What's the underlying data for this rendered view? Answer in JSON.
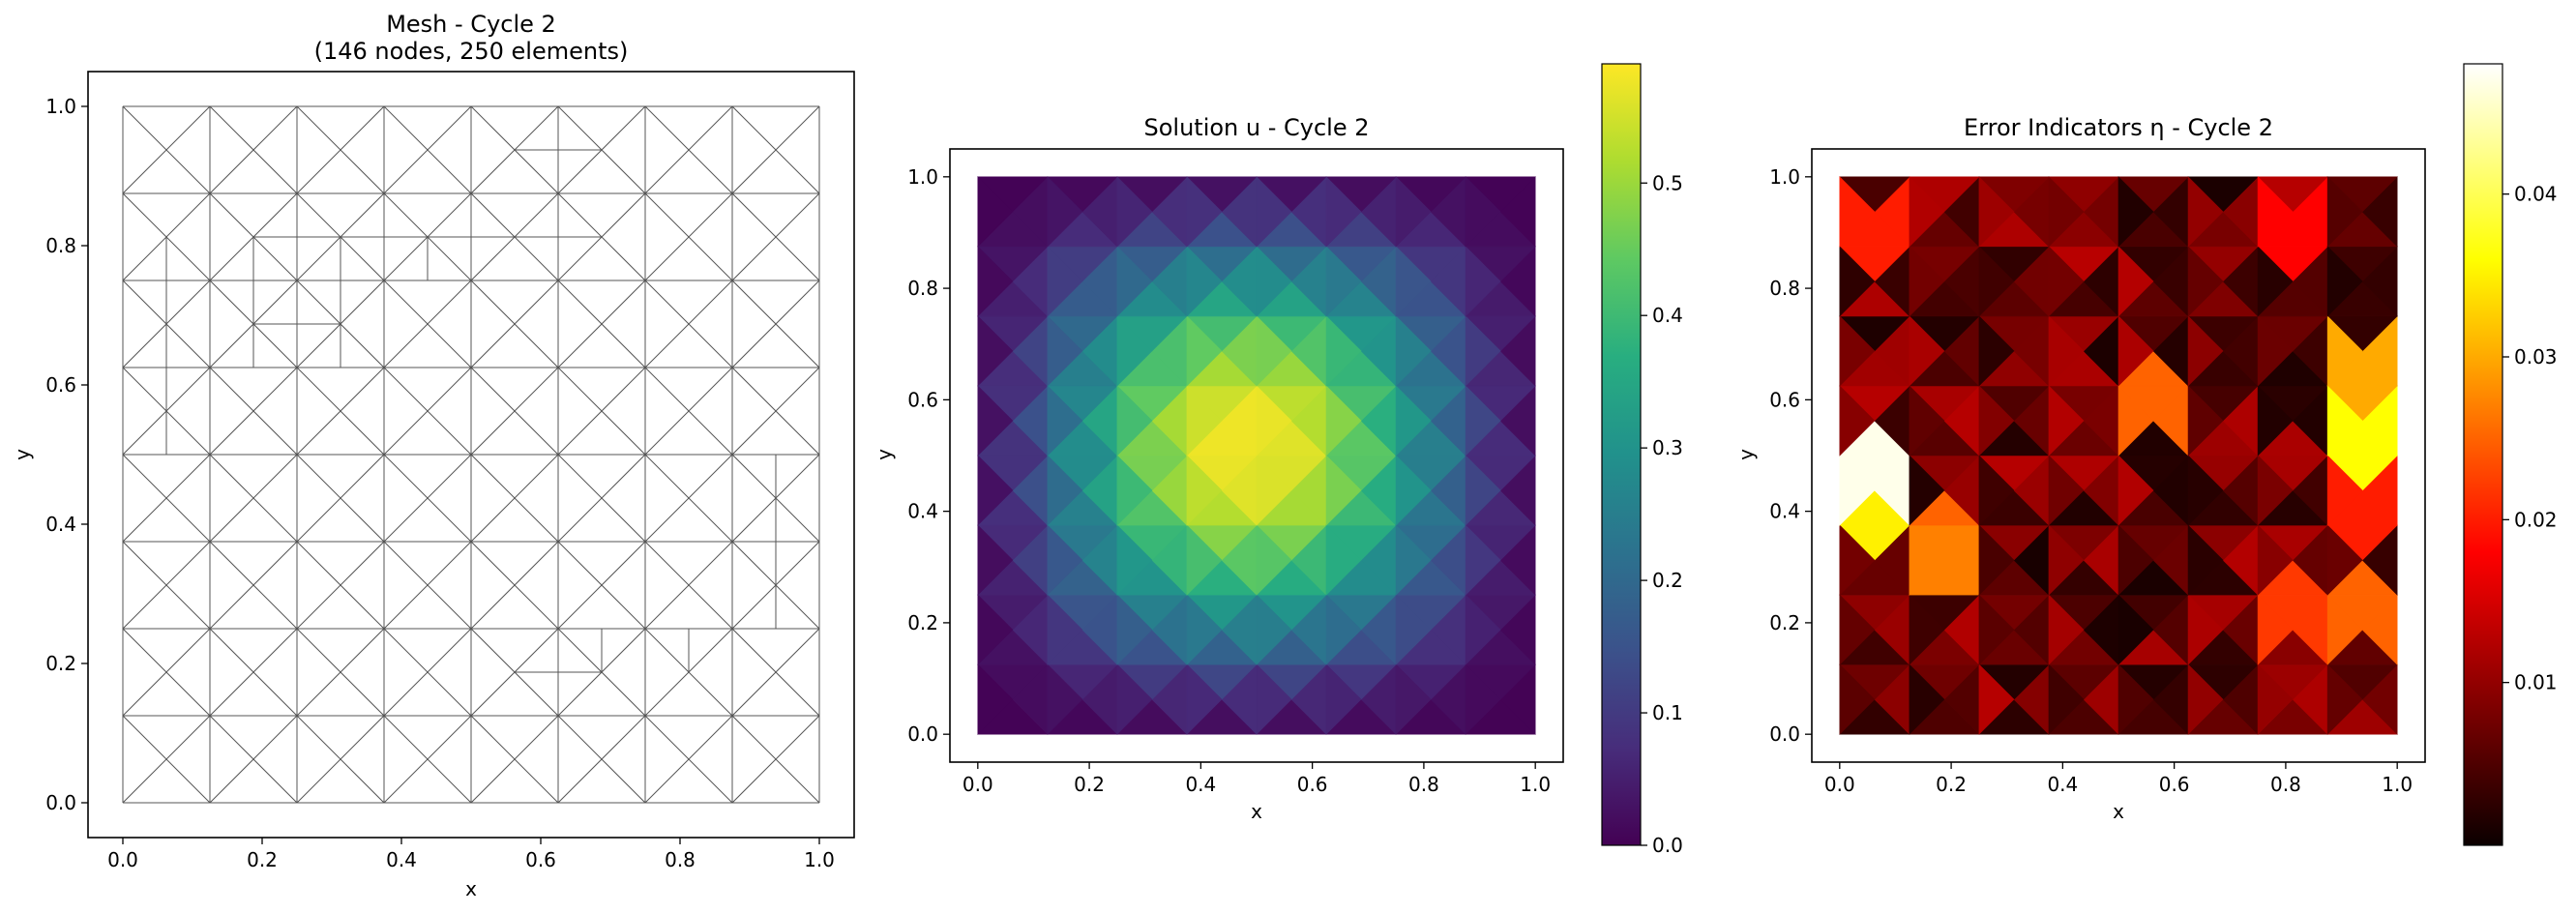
{
  "chart_data": [
    {
      "type": "mesh",
      "title_line1": "Mesh - Cycle 2",
      "title_line2": "(146 nodes, 250 elements)",
      "xlabel": "x",
      "ylabel": "y",
      "xlim": [
        -0.05,
        1.05
      ],
      "ylim": [
        -0.05,
        1.05
      ],
      "xticks": [
        0.0,
        0.2,
        0.4,
        0.6,
        0.8,
        1.0
      ],
      "yticks": [
        0.0,
        0.2,
        0.4,
        0.6,
        0.8,
        1.0
      ],
      "tick_labels": [
        "0.0",
        "0.2",
        "0.4",
        "0.6",
        "0.8",
        "1.0"
      ],
      "base_grid_divisions": 8,
      "line_color": "#555555"
    },
    {
      "type": "heatmap",
      "title": "Solution u - Cycle 2",
      "xlabel": "x",
      "ylabel": "y",
      "xlim": [
        -0.05,
        1.05
      ],
      "ylim": [
        -0.05,
        1.05
      ],
      "xticks": [
        0.0,
        0.2,
        0.4,
        0.6,
        0.8,
        1.0
      ],
      "yticks": [
        0.0,
        0.2,
        0.4,
        0.6,
        0.8,
        1.0
      ],
      "tick_labels": [
        "0.0",
        "0.2",
        "0.4",
        "0.6",
        "0.8",
        "1.0"
      ],
      "colormap": "viridis",
      "vmin": 0.0,
      "vmax": 0.59,
      "peak_location": [
        0.45,
        0.55
      ],
      "colorbar_ticks": [
        0.0,
        0.1,
        0.2,
        0.3,
        0.4,
        0.5
      ],
      "colorbar_labels": [
        "0.0",
        "0.1",
        "0.2",
        "0.3",
        "0.4",
        "0.5"
      ]
    },
    {
      "type": "heatmap",
      "title": "Error Indicators η - Cycle 2",
      "xlabel": "x",
      "ylabel": "y",
      "xlim": [
        -0.05,
        1.05
      ],
      "ylim": [
        -0.05,
        1.05
      ],
      "xticks": [
        0.0,
        0.2,
        0.4,
        0.6,
        0.8,
        1.0
      ],
      "yticks": [
        0.0,
        0.2,
        0.4,
        0.6,
        0.8,
        1.0
      ],
      "tick_labels": [
        "0.0",
        "0.2",
        "0.4",
        "0.6",
        "0.8",
        "1.0"
      ],
      "colormap": "hot",
      "vmin": 0.0,
      "vmax": 0.048,
      "colorbar_ticks": [
        0.01,
        0.02,
        0.03,
        0.04
      ],
      "colorbar_labels": [
        "0.01",
        "0.02",
        "0.03",
        "0.04"
      ],
      "hotspots": [
        {
          "x": 0.0625,
          "y": 0.47,
          "value": 0.047
        },
        {
          "x": 0.0625,
          "y": 0.4,
          "value": 0.035
        },
        {
          "x": 0.19,
          "y": 0.31,
          "value": 0.027
        },
        {
          "x": 0.19,
          "y": 0.38,
          "value": 0.025
        },
        {
          "x": 0.56,
          "y": 0.6,
          "value": 0.025
        },
        {
          "x": 0.94,
          "y": 0.66,
          "value": 0.03
        },
        {
          "x": 0.94,
          "y": 0.53,
          "value": 0.036
        },
        {
          "x": 0.94,
          "y": 0.4,
          "value": 0.02
        },
        {
          "x": 0.94,
          "y": 0.22,
          "value": 0.025
        },
        {
          "x": 0.81,
          "y": 0.22,
          "value": 0.022
        },
        {
          "x": 0.06,
          "y": 0.9,
          "value": 0.02
        },
        {
          "x": 0.81,
          "y": 0.9,
          "value": 0.018
        },
        {
          "x": 0.94,
          "y": 0.6,
          "value": 0.022
        }
      ]
    }
  ]
}
